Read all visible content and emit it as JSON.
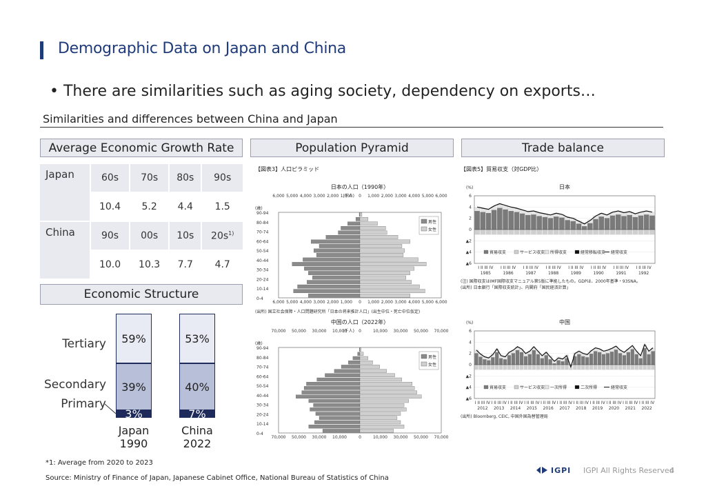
{
  "slide": {
    "title": "Demographic Data on Japan and China",
    "bullet": "There are similarities such as aging society, dependency on exports…",
    "subhead": "Similarities and differences between China and Japan",
    "page_number": "4",
    "rights": "IGPI All Rights Reserved",
    "logo_text": "IGPI"
  },
  "headers": {
    "growth": "Average Economic Growth Rate",
    "pyramid": "Population Pyramid",
    "trade": "Trade balance",
    "structure": "Economic Structure"
  },
  "growth": {
    "japan_label": "Japan",
    "japan_periods": [
      "60s",
      "70s",
      "80s",
      "90s"
    ],
    "japan_values": [
      "10.4",
      "5.2",
      "4.4",
      "1.5"
    ],
    "china_label": "China",
    "china_periods": [
      "90s",
      "00s",
      "10s",
      "20s"
    ],
    "china_last_sup": "1)",
    "china_values": [
      "10.0",
      "10.3",
      "7.7",
      "4.7"
    ]
  },
  "structure": {
    "labels": {
      "tertiary": "Tertiary",
      "secondary": "Secondary",
      "primary": "Primary"
    },
    "japan": {
      "name": "Japan",
      "year": "1990",
      "tertiary": 59,
      "secondary": 39,
      "primary": 3,
      "tertiary_label": "59%",
      "secondary_label": "39%",
      "primary_label": "3%"
    },
    "china": {
      "name": "China",
      "year": "2022",
      "tertiary": 53,
      "secondary": 40,
      "primary": 7,
      "tertiary_label": "53%",
      "secondary_label": "40%",
      "primary_label": "7%"
    },
    "colors": {
      "tertiary": "#e8eaf4",
      "secondary": "#b8bfd8",
      "primary": "#1e2a5a"
    }
  },
  "pyramid": {
    "fig_label": "【図表3】人口ピラミッド",
    "japan_title": "日本の人口（1990年）",
    "china_title": "中国の人口（2022年）",
    "unit": "(千人)",
    "age_axis": "(歳)",
    "legend_male": "男性",
    "legend_female": "女性",
    "japan_source": "(出所) 国立社会保障・人口問題研究所「日本の将来推計人口」(出生中位・死亡中位仮定)",
    "china_source": "(出所) UN,World Population Prospects 2022",
    "age_groups": [
      "90-94",
      "80-84",
      "70-74",
      "60-64",
      "50-54",
      "40-44",
      "30-34",
      "20-24",
      "10-14",
      "0-4"
    ],
    "japan_ticks": [
      "6,000",
      "5,000",
      "4,000",
      "3,000",
      "2,000",
      "1,000",
      "0",
      "1,000",
      "2,000",
      "3,000",
      "4,000",
      "5,000",
      "6,000"
    ],
    "china_ticks": [
      "70,000",
      "50,000",
      "30,000",
      "10,000",
      "0",
      "10,000",
      "30,000",
      "50,000",
      "70,000"
    ],
    "japan_male": [
      0.05,
      0.3,
      0.9,
      1.4,
      1.6,
      2.5,
      3.6,
      3.0,
      3.4,
      3.2,
      4.2,
      5.0,
      4.1,
      3.8,
      3.5,
      3.9,
      4.6,
      4.9,
      3.8
    ],
    "japan_female": [
      0.15,
      0.6,
      1.3,
      1.9,
      2.0,
      2.8,
      3.7,
      3.1,
      3.3,
      3.2,
      4.3,
      4.9,
      4.0,
      3.7,
      3.4,
      3.8,
      4.4,
      4.8,
      3.7
    ],
    "china_male": [
      0.5,
      2,
      6,
      10,
      16,
      22,
      30,
      37,
      46,
      48,
      50,
      55,
      44,
      40,
      43,
      38,
      35,
      39,
      44,
      32
    ],
    "china_female": [
      1,
      3,
      7,
      11,
      17,
      23,
      30,
      36,
      45,
      47,
      49,
      53,
      42,
      38,
      40,
      35,
      32,
      35,
      38,
      29
    ],
    "colors": {
      "male": "#8a8a8a",
      "female": "#cfcfcf"
    }
  },
  "trade": {
    "fig_label": "【図表5】貿易収支（対GDP比）",
    "japan_title": "日本",
    "china_title": "中国",
    "unit": "(%)",
    "y_ticks": [
      "6",
      "4",
      "2",
      "0",
      "▲2",
      "▲4",
      "▲6"
    ],
    "japan_years": [
      "1985",
      "1986",
      "1987",
      "1988",
      "1989",
      "1990",
      "1991",
      "1992"
    ],
    "china_years": [
      "2012",
      "2013",
      "2014",
      "2015",
      "2016",
      "2017",
      "2018",
      "2019",
      "2020",
      "2021",
      "2022"
    ],
    "quarters": "I II III IV",
    "legend_japan": [
      "貿易収支",
      "サービス収支",
      "所得収支",
      "経常移転収支",
      "経常収支"
    ],
    "legend_china": [
      "貿易収支",
      "サービス収支",
      "一次所得",
      "二次所得",
      "経常収支"
    ],
    "note_japan_1": "(注) 国際収支はIMF国際収支マニュアル第5版に準拠したもの。GDPは、2000年基準・93SNA。",
    "note_japan_2": "(出所) 日本銀行「国際収支統計」、内閣府「国民経済計算」",
    "note_china": "(出所) Bloomberg, CEIC, 中国外国為替管理局",
    "japan_current_account": [
      4.0,
      3.8,
      3.6,
      4.2,
      4.6,
      4.3,
      4.0,
      3.8,
      3.5,
      3.2,
      3.3,
      3.0,
      2.8,
      2.6,
      2.9,
      2.7,
      2.2,
      2.0,
      1.5,
      1.0,
      1.6,
      2.4,
      2.9,
      2.6,
      3.1,
      3.3,
      3.0,
      3.2,
      2.8,
      3.1,
      3.3,
      3.1
    ],
    "china_current_account": [
      2.6,
      1.9,
      1.4,
      1.2,
      1.8,
      2.8,
      1.6,
      1.4,
      2.2,
      2.6,
      3.2,
      2.8,
      2.0,
      2.4,
      3.2,
      2.4,
      1.6,
      2.2,
      1.4,
      0.6,
      1.2,
      1.0,
      1.6,
      -0.4,
      2.0,
      2.4,
      2.0,
      1.8,
      2.5,
      3.0,
      2.8,
      2.4,
      2.6,
      2.9,
      3.3,
      2.6,
      2.2,
      2.8,
      3.4,
      2.4,
      1.6,
      3.6,
      2.4,
      3.0
    ],
    "colors": {
      "trade": "#7a7a7a",
      "service": "#cfcfcf",
      "income": "#e6e6e6",
      "transfer": "#111111",
      "line": "#111111"
    }
  },
  "notes": {
    "footnote": "*1: Average from 2020 to 2023",
    "source": "Source: Ministry of Finance of Japan, Japanese Cabinet Office, National Bureau of Statistics of China"
  }
}
